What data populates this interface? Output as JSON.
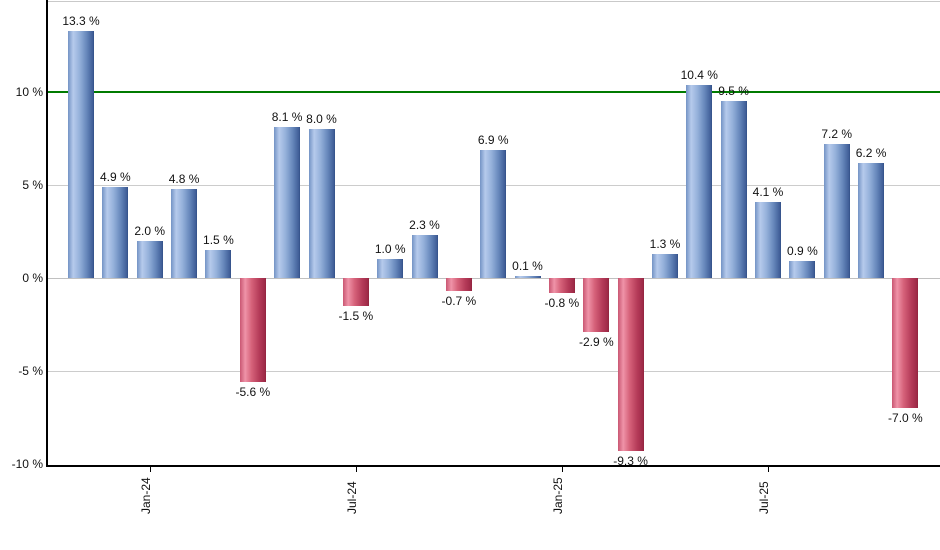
{
  "chart_data": {
    "type": "bar",
    "title": "",
    "xlabel": "",
    "ylabel": "",
    "values": [
      13.3,
      4.9,
      2.0,
      4.8,
      1.5,
      -5.6,
      8.1,
      8.0,
      -1.5,
      1.0,
      2.3,
      -0.7,
      6.9,
      0.1,
      -0.8,
      -2.9,
      -9.3,
      1.3,
      10.4,
      9.5,
      4.1,
      0.9,
      7.2,
      6.2,
      -7.0
    ],
    "value_labels": [
      "13.3 %",
      "4.9 %",
      "2.0 %",
      "4.8 %",
      "1.5 %",
      "-5.6 %",
      "8.1 %",
      "8.0 %",
      "-1.5 %",
      "1.0 %",
      "2.3 %",
      "-0.7 %",
      "6.9 %",
      "0.1 %",
      "-0.8 %",
      "-2.9 %",
      "-9.3 %",
      "1.3 %",
      "10.4 %",
      "9.5 %",
      "4.1 %",
      "0.9 %",
      "7.2 %",
      "6.2 %",
      "-7.0 %"
    ],
    "y_axis": {
      "ticks": [
        {
          "label": "10 %",
          "value": 10
        },
        {
          "label": "5 %",
          "value": 5
        },
        {
          "label": "0 %",
          "value": 0
        },
        {
          "label": "-5 %",
          "value": -5
        },
        {
          "label": "-10 %",
          "value": -10
        }
      ],
      "ylim": [
        -10,
        14.8
      ]
    },
    "x_axis": {
      "ticks": [
        {
          "label": "Jan-24",
          "bar_index": 2
        },
        {
          "label": "Jul-24",
          "bar_index": 8
        },
        {
          "label": "Jan-25",
          "bar_index": 14
        },
        {
          "label": "Jul-25",
          "bar_index": 20
        }
      ]
    },
    "gridlines": [
      {
        "value": 5,
        "color": "#cccccc"
      },
      {
        "value": 0,
        "color": "#c0c0c0"
      },
      {
        "value": -5,
        "color": "#cccccc"
      }
    ],
    "reference_line": {
      "value": 10,
      "color": "#007b00"
    },
    "legend": null,
    "grid": true,
    "colors": {
      "positive_bar_light": "#b6caec",
      "positive_bar_dark": "#3d5b95",
      "negative_bar_light": "#ef93a8",
      "negative_bar_dark": "#9c2946",
      "axis": "#000000",
      "label_text": "#111111",
      "grid_major": "#cccccc",
      "zero_line": "#c0c0c0",
      "reference_line": "#007b00",
      "background": "#ffffff"
    }
  }
}
